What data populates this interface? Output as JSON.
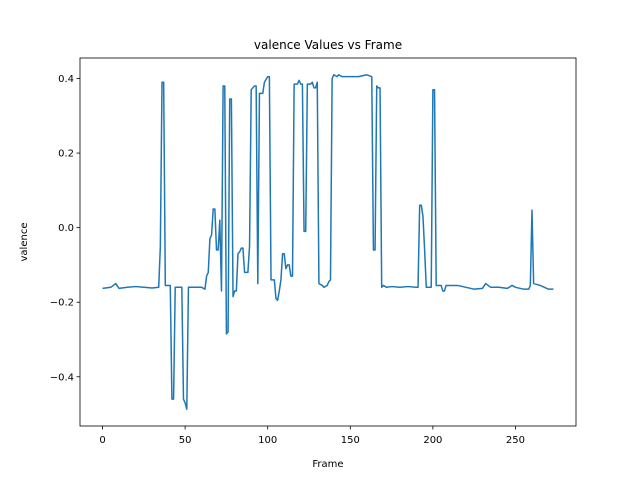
{
  "chart_data": {
    "type": "line",
    "title": "valence Values vs Frame",
    "xlabel": "Frame",
    "ylabel": "valence",
    "xlim": [
      -13.65,
      286.65
    ],
    "ylim": [
      -0.532,
      0.455
    ],
    "xticks": [
      0,
      50,
      100,
      150,
      200,
      250
    ],
    "yticks": [
      {
        "value": -0.4,
        "label": "−0.4"
      },
      {
        "value": -0.2,
        "label": "−0.2"
      },
      {
        "value": 0,
        "label": "0.0"
      },
      {
        "value": 0.2,
        "label": "0.2"
      },
      {
        "value": 0.4,
        "label": "0.4"
      }
    ],
    "grid": false,
    "series": [
      {
        "color": "#1f77b4",
        "x": [
          0,
          5,
          8,
          10,
          15,
          20,
          25,
          30,
          34,
          35,
          36,
          37,
          38,
          41,
          42,
          43,
          44,
          48,
          49,
          50,
          51,
          52,
          58,
          60,
          62,
          63,
          64,
          65,
          66,
          67,
          68,
          69,
          70,
          71,
          72,
          73,
          74,
          75,
          76,
          77,
          78,
          79,
          80,
          81,
          82,
          83,
          84,
          85,
          86,
          88,
          89,
          90,
          92,
          93,
          94,
          95,
          97,
          98,
          100,
          101,
          102,
          104,
          105,
          106,
          107,
          108,
          109,
          110,
          111,
          112,
          113,
          114,
          115,
          116,
          118,
          119,
          120,
          121,
          122,
          123,
          124,
          126,
          127,
          128,
          129,
          130,
          131,
          133,
          134,
          136,
          137,
          138,
          139,
          140,
          142,
          143,
          145,
          150,
          155,
          160,
          163,
          164,
          165,
          166,
          167,
          168,
          169,
          170,
          172,
          175,
          180,
          185,
          190,
          191,
          192,
          193,
          194,
          195,
          196,
          199,
          200,
          201,
          202,
          205,
          206,
          207,
          208,
          215,
          220,
          225,
          230,
          232,
          235,
          240,
          245,
          248,
          250,
          255,
          258,
          259,
          260,
          261,
          265,
          270,
          273
        ],
        "values": [
          -0.163,
          -0.16,
          -0.15,
          -0.163,
          -0.16,
          -0.158,
          -0.16,
          -0.162,
          -0.16,
          -0.05,
          0.39,
          0.39,
          -0.155,
          -0.155,
          -0.46,
          -0.46,
          -0.16,
          -0.16,
          -0.46,
          -0.47,
          -0.487,
          -0.16,
          -0.16,
          -0.16,
          -0.165,
          -0.13,
          -0.12,
          -0.03,
          -0.02,
          0.05,
          0.05,
          -0.06,
          -0.06,
          0.02,
          -0.17,
          0.38,
          0.38,
          -0.285,
          -0.28,
          0.345,
          0.345,
          -0.185,
          -0.17,
          -0.17,
          -0.07,
          -0.065,
          -0.055,
          -0.055,
          -0.12,
          -0.12,
          -0.05,
          0.37,
          0.38,
          0.38,
          -0.15,
          0.36,
          0.36,
          0.39,
          0.405,
          0.405,
          -0.14,
          -0.14,
          -0.19,
          -0.195,
          -0.17,
          -0.14,
          -0.07,
          -0.07,
          -0.11,
          -0.1,
          -0.1,
          -0.13,
          -0.13,
          0.385,
          0.385,
          0.395,
          0.385,
          0.385,
          -0.01,
          -0.01,
          0.385,
          0.385,
          0.39,
          0.375,
          0.375,
          0.39,
          -0.15,
          -0.155,
          -0.16,
          -0.155,
          -0.145,
          -0.14,
          0.4,
          0.41,
          0.405,
          0.41,
          0.405,
          0.405,
          0.405,
          0.41,
          0.405,
          -0.06,
          -0.06,
          0.38,
          0.375,
          0.375,
          -0.16,
          -0.155,
          -0.16,
          -0.158,
          -0.16,
          -0.158,
          -0.16,
          -0.16,
          0.06,
          0.06,
          0.03,
          -0.06,
          -0.16,
          -0.16,
          0.37,
          0.37,
          -0.155,
          -0.155,
          -0.17,
          -0.17,
          -0.155,
          -0.155,
          -0.16,
          -0.165,
          -0.163,
          -0.15,
          -0.16,
          -0.16,
          -0.163,
          -0.155,
          -0.16,
          -0.165,
          -0.165,
          -0.155,
          0.047,
          -0.15,
          -0.155,
          -0.165,
          -0.165
        ]
      }
    ]
  }
}
